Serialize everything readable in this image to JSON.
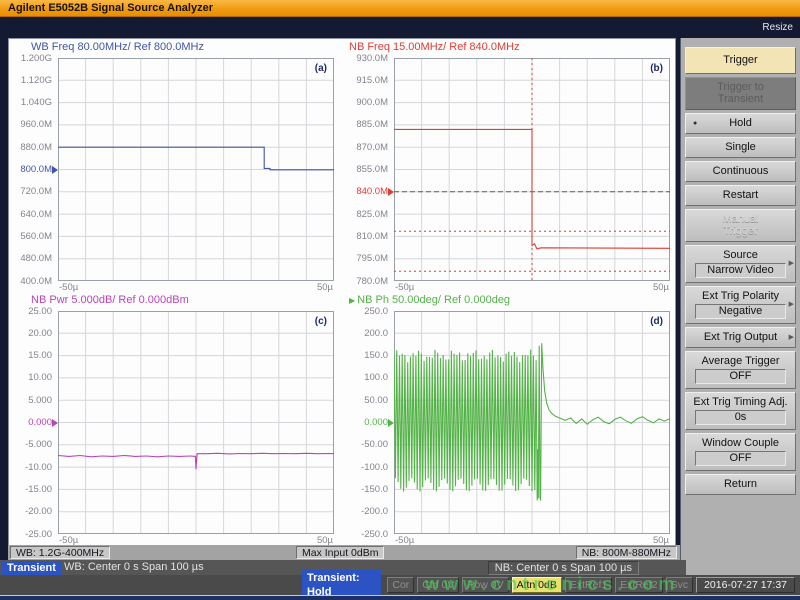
{
  "window": {
    "title": "Agilent E5052B Signal Source Analyzer",
    "resize": "Resize"
  },
  "watermark": "www.cntronics.com",
  "sidebar": {
    "buttons": [
      {
        "id": "trigger-title",
        "lines": [
          "Trigger"
        ],
        "style": "title"
      },
      {
        "id": "trigger-to-transient",
        "lines": [
          "Trigger to",
          "Transient"
        ],
        "style": "disdark"
      },
      {
        "id": "hold",
        "lines": [
          "Hold"
        ],
        "bullet": true
      },
      {
        "id": "single",
        "lines": [
          "Single"
        ]
      },
      {
        "id": "continuous",
        "lines": [
          "Continuous"
        ]
      },
      {
        "id": "restart",
        "lines": [
          "Restart"
        ]
      },
      {
        "id": "manual-trigger",
        "lines": [
          "Manual",
          "Trigger"
        ],
        "style": "dis"
      },
      {
        "id": "source",
        "lines": [
          "Source"
        ],
        "value": "Narrow Video",
        "arrow": true
      },
      {
        "id": "ext-trig-polarity",
        "lines": [
          "Ext Trig Polarity"
        ],
        "value": "Negative",
        "arrow": true
      },
      {
        "id": "ext-trig-output",
        "lines": [
          "Ext Trig Output"
        ],
        "arrow": true
      },
      {
        "id": "average-trigger",
        "lines": [
          "Average Trigger"
        ],
        "value": "OFF"
      },
      {
        "id": "ext-trig-timing-adj",
        "lines": [
          "Ext Trig Timing Adj."
        ],
        "value": "0s"
      },
      {
        "id": "window-couple",
        "lines": [
          "Window Couple"
        ],
        "value": "OFF"
      },
      {
        "id": "return",
        "lines": [
          "Return"
        ]
      }
    ]
  },
  "bars": {
    "info": {
      "wb": "WB: 1.2G-400MHz",
      "max_input": "Max Input 0dBm",
      "nb": "NB: 800M-880MHz"
    },
    "sweep": {
      "badge": "Transient",
      "wb": "WB: Center 0 s  Span 100 µs",
      "nb": "NB: Center 0 s  Span 100 µs"
    },
    "status": {
      "badge": "Transient: Hold",
      "items": [
        {
          "label": "Cor",
          "state": "dim"
        },
        {
          "label": "Ctrl  0V",
          "state": "dim"
        },
        {
          "label": "Pow  0V",
          "state": "dim"
        },
        {
          "label": "Attn 0dB",
          "state": "on"
        },
        {
          "label": "ExtRef1",
          "state": "dim"
        },
        {
          "label": "ExtRef2",
          "state": "dim"
        },
        {
          "label": "Svc",
          "state": "dim"
        }
      ],
      "datetime": "2016-07-27 17:37"
    }
  },
  "chart_data": [
    {
      "id": "wb-freq",
      "type": "line",
      "corner": "(a)",
      "title": "WB Freq 80.00MHz/ Ref 800.0MHz",
      "color": "#4055a8",
      "x_range": [
        -50,
        50
      ],
      "x_unit": "µs",
      "x_tick_labels": [
        "-50µ",
        "50µ"
      ],
      "y_ticks": [
        "1.200G",
        "1.120G",
        "1.040G",
        "960.0M",
        "880.0M",
        "800.0M",
        "720.0M",
        "640.0M",
        "560.0M",
        "480.0M",
        "400.0M"
      ],
      "y_max": 1200,
      "y_min": 400,
      "y_unit": "MHz",
      "ref_index": 5,
      "points": [
        [
          -50,
          880
        ],
        [
          24.7,
          880
        ],
        [
          24.7,
          804
        ],
        [
          26.8,
          804
        ],
        [
          26.8,
          799
        ],
        [
          50,
          799
        ]
      ]
    },
    {
      "id": "nb-freq",
      "type": "line",
      "corner": "(b)",
      "title": "NB Freq 15.00MHz/ Ref 840.0MHz",
      "color": "#e03c32",
      "x_range": [
        -50,
        50
      ],
      "x_unit": "µs",
      "x_tick_labels": [
        "-50µ",
        "50µ"
      ],
      "y_ticks": [
        "930.0M",
        "915.0M",
        "900.0M",
        "885.0M",
        "870.0M",
        "855.0M",
        "840.0M",
        "825.0M",
        "810.0M",
        "795.0M",
        "780.0M"
      ],
      "y_max": 930,
      "y_min": 780,
      "y_unit": "MHz",
      "ref_index": 6,
      "ref_line": 840,
      "limit_lines": [
        813.5,
        786.5
      ],
      "trigger_x": 0,
      "points": [
        [
          -50,
          882
        ],
        [
          0,
          882
        ],
        [
          0,
          804
        ],
        [
          0.9,
          805
        ],
        [
          1.8,
          801.5
        ],
        [
          3.2,
          802.3
        ],
        [
          50,
          802
        ]
      ]
    },
    {
      "id": "nb-pwr",
      "type": "line",
      "corner": "(c)",
      "title": "NB Pwr 5.000dB/ Ref 0.000dBm",
      "color": "#b845b8",
      "x_range": [
        -50,
        50
      ],
      "x_unit": "µs",
      "x_tick_labels": [
        "-50µ",
        "50µ"
      ],
      "y_ticks": [
        "25.00",
        "20.00",
        "15.00",
        "10.00",
        "5.000",
        "0.000",
        "-5.000",
        "-10.00",
        "-15.00",
        "-20.00",
        "-25.00"
      ],
      "y_max": 25,
      "y_min": -25,
      "y_unit": "dBm",
      "ref_index": 5,
      "points": [
        [
          -50,
          -7.4
        ],
        [
          -46,
          -7.6
        ],
        [
          -42,
          -7.4
        ],
        [
          -38,
          -7.7
        ],
        [
          -34,
          -7.5
        ],
        [
          -30,
          -7.6
        ],
        [
          -26,
          -7.4
        ],
        [
          -22,
          -7.6
        ],
        [
          -18,
          -7.5
        ],
        [
          -14,
          -7.7
        ],
        [
          -10,
          -7.5
        ],
        [
          -6,
          -7.6
        ],
        [
          -2,
          -7.5
        ],
        [
          -0.2,
          -7.6
        ],
        [
          0,
          -10.5
        ],
        [
          0.4,
          -7.0
        ],
        [
          4,
          -7.0
        ],
        [
          8,
          -6.9
        ],
        [
          12,
          -7.05
        ],
        [
          16,
          -6.95
        ],
        [
          20,
          -7.0
        ],
        [
          24,
          -6.9
        ],
        [
          28,
          -7.0
        ],
        [
          32,
          -6.95
        ],
        [
          36,
          -7.0
        ],
        [
          40,
          -6.9
        ],
        [
          44,
          -7.0
        ],
        [
          48,
          -6.95
        ],
        [
          50,
          -7.0
        ]
      ]
    },
    {
      "id": "nb-ph",
      "type": "line",
      "corner": "(d)",
      "header_arrow": true,
      "title": "NB Ph 50.00deg/ Ref 0.000deg",
      "color": "#54b348",
      "x_range": [
        -50,
        50
      ],
      "x_unit": "µs",
      "x_tick_labels": [
        "-50µ",
        "50µ"
      ],
      "y_ticks": [
        "250.0",
        "200.0",
        "150.0",
        "100.0",
        "50.00",
        "0.000",
        "-50.00",
        "-100.0",
        "-150.0",
        "-200.0",
        "-250.0"
      ],
      "y_max": 250,
      "y_min": -250,
      "y_unit": "deg",
      "ref_index": 5,
      "oscillation": {
        "x_from": -50,
        "x_to": 1.5,
        "cycles": 52,
        "top_base": 150,
        "top_var": 15,
        "bottom_base": -140,
        "bottom_var": 15
      },
      "points": [
        [
          1.9,
          -175
        ],
        [
          2.1,
          -60
        ],
        [
          2.3,
          -170
        ],
        [
          2.6,
          172
        ],
        [
          2.9,
          -168
        ],
        [
          3.1,
          -175
        ],
        [
          3.5,
          178
        ],
        [
          4.0,
          120
        ],
        [
          4.6,
          70
        ],
        [
          5.4,
          42
        ],
        [
          6.2,
          28
        ],
        [
          7.2,
          20
        ],
        [
          8.5,
          14
        ],
        [
          10,
          10
        ],
        [
          12,
          5
        ],
        [
          14,
          10
        ],
        [
          16,
          -2
        ],
        [
          18,
          8
        ],
        [
          20,
          -4
        ],
        [
          22,
          6
        ],
        [
          24,
          12
        ],
        [
          26,
          2
        ],
        [
          28,
          -3
        ],
        [
          30,
          7
        ],
        [
          32,
          12
        ],
        [
          34,
          4
        ],
        [
          36,
          -2
        ],
        [
          38,
          8
        ],
        [
          40,
          13
        ],
        [
          42,
          5
        ],
        [
          44,
          -1
        ],
        [
          46,
          8
        ],
        [
          48,
          3
        ],
        [
          50,
          9
        ]
      ]
    }
  ]
}
